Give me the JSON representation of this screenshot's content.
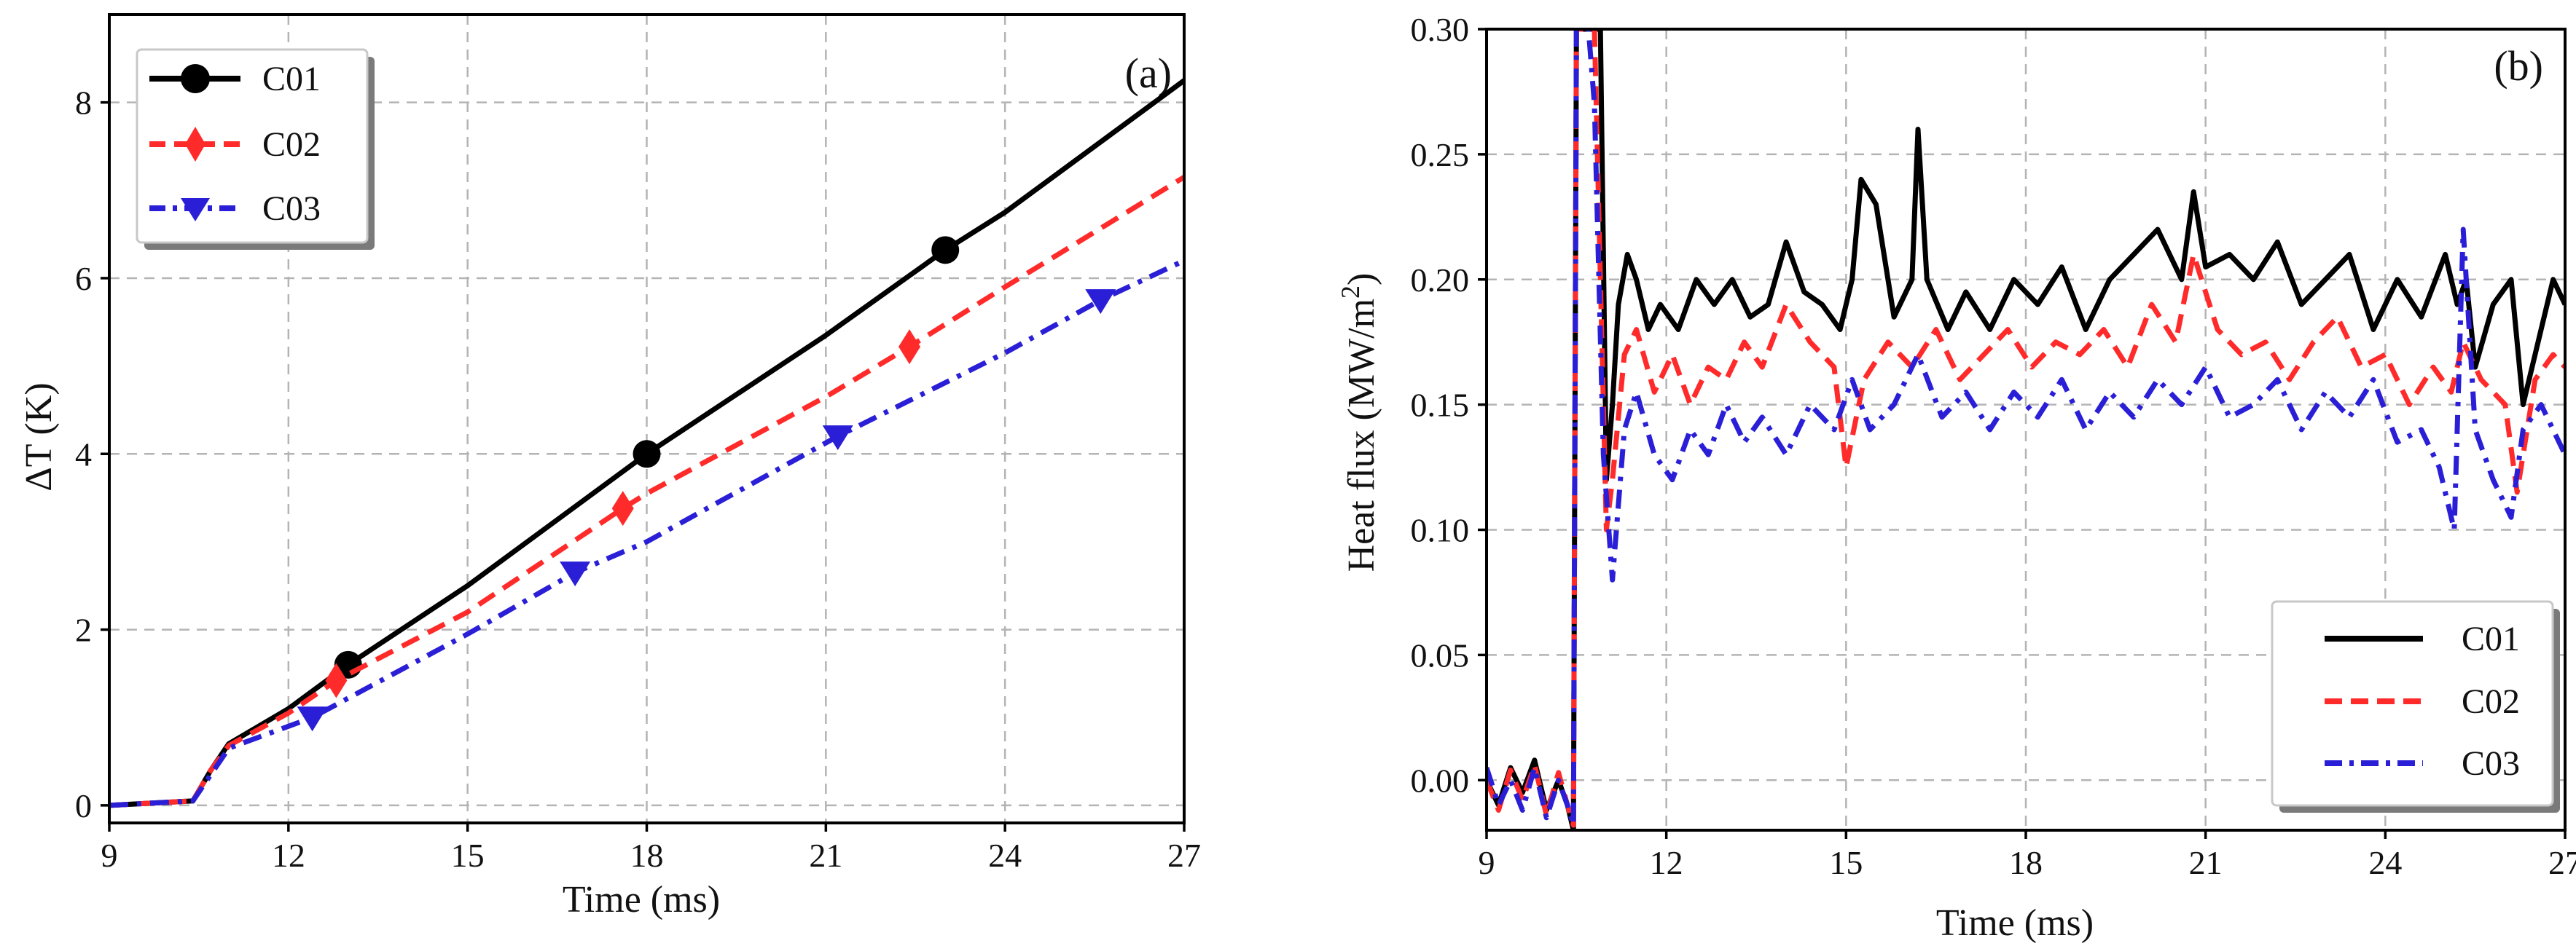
{
  "chart_data": [
    {
      "type": "line",
      "panel_label": "(a)",
      "title": "",
      "xlabel": "Time (ms)",
      "ylabel": "ΔT (K)",
      "xlim": [
        9,
        27
      ],
      "ylim": [
        -0.2,
        9
      ],
      "x_ticks": [
        9,
        12,
        15,
        18,
        21,
        24,
        27
      ],
      "y_ticks": [
        0,
        2,
        4,
        6,
        8
      ],
      "x_tick_labels": [
        "9",
        "12",
        "15",
        "18",
        "21",
        "24",
        "27"
      ],
      "y_tick_labels": [
        "0",
        "2",
        "4",
        "6",
        "8"
      ],
      "grid": true,
      "legend_position": "top-left",
      "series": [
        {
          "name": "C01",
          "color": "#000000",
          "dash": "solid",
          "marker": "circle",
          "x": [
            9,
            10.4,
            10.7,
            11.0,
            12,
            13,
            15,
            18,
            21,
            23,
            24,
            27
          ],
          "y": [
            0,
            0.05,
            0.4,
            0.7,
            1.1,
            1.6,
            2.5,
            4.0,
            5.35,
            6.32,
            6.75,
            8.25
          ],
          "marker_x": [
            13.0,
            18.0,
            23.0
          ],
          "marker_y": [
            1.6,
            4.0,
            6.32
          ]
        },
        {
          "name": "C02",
          "color": "#ff2b2b",
          "dash": "dashed",
          "marker": "diamond",
          "x": [
            9,
            10.4,
            10.7,
            11.0,
            12,
            12.8,
            15,
            17.6,
            18,
            21,
            22.4,
            24,
            27
          ],
          "y": [
            0,
            0.05,
            0.4,
            0.68,
            1.05,
            1.42,
            2.2,
            3.38,
            3.55,
            4.65,
            5.22,
            5.9,
            7.15
          ],
          "marker_x": [
            12.8,
            17.6,
            22.4
          ],
          "marker_y": [
            1.42,
            3.38,
            5.22
          ]
        },
        {
          "name": "C03",
          "color": "#2a1fd6",
          "dash": "dashdot",
          "marker": "triangle-down",
          "x": [
            9,
            10.4,
            10.7,
            11.0,
            12,
            12.4,
            15,
            16.8,
            18,
            21.2,
            24,
            25.6,
            27
          ],
          "y": [
            0,
            0.05,
            0.35,
            0.65,
            0.9,
            1.0,
            1.95,
            2.65,
            3.0,
            4.2,
            5.15,
            5.75,
            6.2
          ],
          "marker_x": [
            12.4,
            16.8,
            21.2,
            25.6
          ],
          "marker_y": [
            1.0,
            2.65,
            4.2,
            5.75
          ]
        }
      ]
    },
    {
      "type": "line",
      "panel_label": "(b)",
      "title": "",
      "xlabel": "Time (ms)",
      "ylabel": "Heat flux (MW/m",
      "ylabel_sup": "2",
      "ylabel_end": ")",
      "xlim": [
        9,
        27
      ],
      "ylim": [
        -0.02,
        0.3
      ],
      "x_ticks": [
        9,
        12,
        15,
        18,
        21,
        24,
        27
      ],
      "y_ticks": [
        0.0,
        0.05,
        0.1,
        0.15,
        0.2,
        0.25,
        0.3
      ],
      "x_tick_labels": [
        "9",
        "12",
        "15",
        "18",
        "21",
        "24",
        "27"
      ],
      "y_tick_labels": [
        "0.00",
        "0.05",
        "0.10",
        "0.15",
        "0.20",
        "0.25",
        "0.30"
      ],
      "grid": true,
      "legend_position": "bottom-right",
      "series": [
        {
          "name": "C01",
          "color": "#000000",
          "dash": "solid",
          "x": [
            9.0,
            9.2,
            9.4,
            9.6,
            9.8,
            10.0,
            10.2,
            10.35,
            10.45,
            10.5,
            10.9,
            11.0,
            11.1,
            11.2,
            11.35,
            11.5,
            11.7,
            11.9,
            12.2,
            12.5,
            12.8,
            13.1,
            13.4,
            13.7,
            14.0,
            14.3,
            14.6,
            14.9,
            15.1,
            15.25,
            15.5,
            15.8,
            16.1,
            16.2,
            16.35,
            16.7,
            17.0,
            17.4,
            17.8,
            18.2,
            18.6,
            19.0,
            19.4,
            19.8,
            20.2,
            20.6,
            20.8,
            21.0,
            21.4,
            21.8,
            22.2,
            22.6,
            23.0,
            23.4,
            23.8,
            24.2,
            24.6,
            25.0,
            25.2,
            25.35,
            25.5,
            25.8,
            26.1,
            26.3,
            26.6,
            26.8,
            27.0
          ],
          "y": [
            0.0,
            -0.01,
            0.005,
            -0.005,
            0.008,
            -0.012,
            0.0,
            -0.01,
            -0.02,
            0.3,
            0.3,
            0.12,
            0.15,
            0.19,
            0.21,
            0.2,
            0.18,
            0.19,
            0.18,
            0.2,
            0.19,
            0.2,
            0.185,
            0.19,
            0.215,
            0.195,
            0.19,
            0.18,
            0.2,
            0.24,
            0.23,
            0.185,
            0.2,
            0.26,
            0.2,
            0.18,
            0.195,
            0.18,
            0.2,
            0.19,
            0.205,
            0.18,
            0.2,
            0.21,
            0.22,
            0.2,
            0.235,
            0.205,
            0.21,
            0.2,
            0.215,
            0.19,
            0.2,
            0.21,
            0.18,
            0.2,
            0.185,
            0.21,
            0.19,
            0.2,
            0.165,
            0.19,
            0.2,
            0.15,
            0.18,
            0.2,
            0.19
          ]
        },
        {
          "name": "C02",
          "color": "#ff2b2b",
          "dash": "dashed",
          "x": [
            9.0,
            9.2,
            9.4,
            9.6,
            9.8,
            10.0,
            10.2,
            10.35,
            10.45,
            10.5,
            10.8,
            10.9,
            11.0,
            11.1,
            11.3,
            11.5,
            11.8,
            12.1,
            12.4,
            12.7,
            13.0,
            13.3,
            13.6,
            14.0,
            14.4,
            14.8,
            15.0,
            15.3,
            15.7,
            16.1,
            16.5,
            16.9,
            17.3,
            17.7,
            18.1,
            18.5,
            18.9,
            19.3,
            19.7,
            20.1,
            20.5,
            20.8,
            21.2,
            21.6,
            22.0,
            22.4,
            22.8,
            23.2,
            23.6,
            24.0,
            24.4,
            24.8,
            25.1,
            25.3,
            25.6,
            26.0,
            26.2,
            26.5,
            26.8,
            27.0
          ],
          "y": [
            0.0,
            -0.012,
            0.004,
            -0.008,
            0.006,
            -0.014,
            0.003,
            -0.01,
            -0.018,
            0.3,
            0.3,
            0.2,
            0.1,
            0.12,
            0.17,
            0.18,
            0.155,
            0.17,
            0.15,
            0.165,
            0.16,
            0.175,
            0.165,
            0.19,
            0.175,
            0.165,
            0.125,
            0.16,
            0.175,
            0.165,
            0.18,
            0.16,
            0.17,
            0.18,
            0.165,
            0.175,
            0.17,
            0.18,
            0.165,
            0.19,
            0.175,
            0.21,
            0.18,
            0.17,
            0.175,
            0.16,
            0.175,
            0.185,
            0.165,
            0.17,
            0.15,
            0.165,
            0.155,
            0.175,
            0.16,
            0.15,
            0.115,
            0.16,
            0.17,
            0.165
          ]
        },
        {
          "name": "C03",
          "color": "#2a1fd6",
          "dash": "dashdot",
          "x": [
            9.0,
            9.2,
            9.4,
            9.6,
            9.8,
            10.0,
            10.2,
            10.35,
            10.45,
            10.5,
            10.7,
            10.8,
            10.95,
            11.1,
            11.3,
            11.5,
            11.8,
            12.1,
            12.4,
            12.7,
            13.0,
            13.3,
            13.6,
            14.0,
            14.4,
            14.8,
            15.1,
            15.4,
            15.8,
            16.2,
            16.6,
            17.0,
            17.4,
            17.8,
            18.2,
            18.6,
            19.0,
            19.4,
            19.8,
            20.2,
            20.6,
            21.0,
            21.4,
            21.8,
            22.2,
            22.6,
            23.0,
            23.4,
            23.8,
            24.2,
            24.6,
            24.9,
            25.15,
            25.3,
            25.5,
            25.8,
            26.1,
            26.3,
            26.6,
            27.0
          ],
          "y": [
            0.005,
            -0.01,
            0.0,
            -0.012,
            0.005,
            -0.015,
            0.0,
            -0.01,
            -0.018,
            0.3,
            0.3,
            0.27,
            0.13,
            0.08,
            0.14,
            0.155,
            0.13,
            0.12,
            0.14,
            0.13,
            0.15,
            0.135,
            0.145,
            0.13,
            0.15,
            0.14,
            0.16,
            0.14,
            0.15,
            0.17,
            0.145,
            0.155,
            0.14,
            0.155,
            0.145,
            0.16,
            0.14,
            0.155,
            0.145,
            0.16,
            0.15,
            0.165,
            0.145,
            0.15,
            0.16,
            0.14,
            0.155,
            0.145,
            0.16,
            0.135,
            0.14,
            0.125,
            0.1,
            0.22,
            0.14,
            0.12,
            0.105,
            0.14,
            0.15,
            0.13
          ]
        }
      ]
    }
  ]
}
